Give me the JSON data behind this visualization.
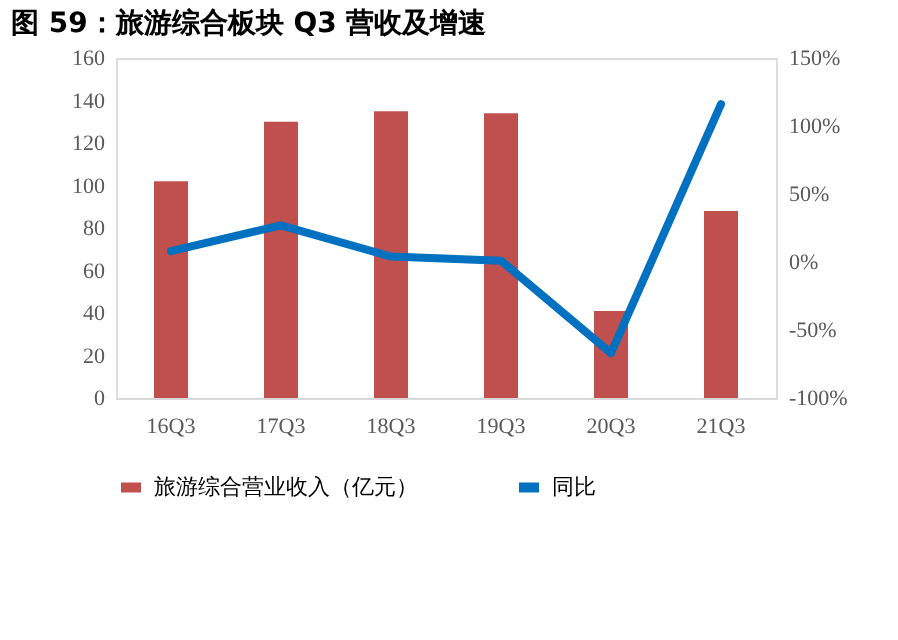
{
  "chart_data": {
    "type": "bar",
    "title": "图 59：旅游综合板块 Q3 营收及增速",
    "categories": [
      "16Q3",
      "17Q3",
      "18Q3",
      "19Q3",
      "20Q3",
      "21Q3"
    ],
    "series": [
      {
        "name": "旅游综合营业收入（亿元）",
        "color": "#c0504d",
        "values": [
          102,
          130,
          135,
          134,
          41,
          88
        ]
      },
      {
        "name": "同比",
        "type": "line",
        "axis": "y2",
        "color": "#0070c0",
        "values": [
          8,
          27,
          4,
          1,
          -67,
          116
        ]
      }
    ],
    "ylim": [
      0,
      160
    ],
    "yticks": [
      0,
      20,
      40,
      60,
      80,
      100,
      120,
      140,
      160
    ],
    "y2lim": [
      -100,
      150
    ],
    "y2ticks": [
      {
        "value": -100,
        "label": "-100%"
      },
      {
        "value": -50,
        "label": "-50%"
      },
      {
        "value": 0,
        "label": "0%"
      },
      {
        "value": 50,
        "label": "50%"
      },
      {
        "value": 100,
        "label": "100%"
      },
      {
        "value": 150,
        "label": "150%"
      }
    ],
    "grid": false,
    "legend": "bottom",
    "marker": "none",
    "line_style": "solid"
  }
}
